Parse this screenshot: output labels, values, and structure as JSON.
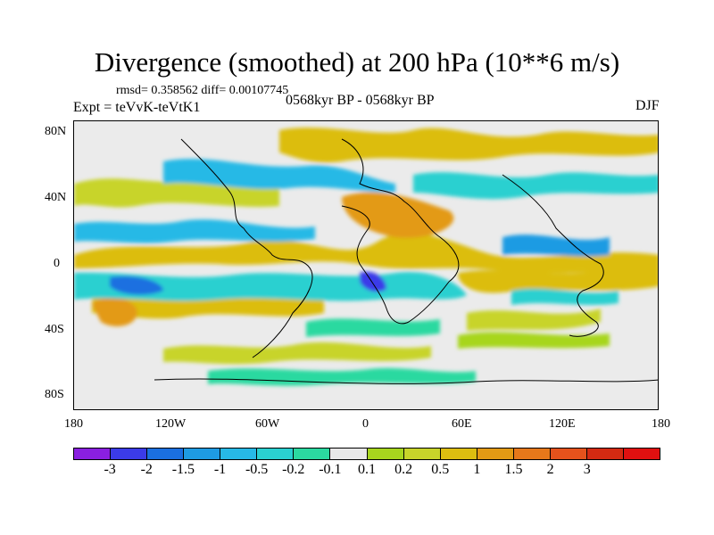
{
  "title": "Divergence (smoothed) at 200 hPa (10**6 m/s)",
  "stats_text": "rmsd= 0.358562 diff= 0.00107745",
  "expt_text": "Expt = teVvK-teVtK1",
  "period_text": "0568kyr BP - 0568kyr BP",
  "season_text": "DJF",
  "y_axis_labels": [
    "80N",
    "40N",
    "0",
    "40S",
    "80S"
  ],
  "x_axis_labels": [
    "180",
    "120W",
    "60W",
    "0",
    "60E",
    "120E",
    "180"
  ],
  "colorbar": {
    "colors": [
      "#8a1fe0",
      "#3b3be8",
      "#1a6fe0",
      "#1e9be3",
      "#27b9e6",
      "#2ad0d0",
      "#2bd9a0",
      "#e8e8e8",
      "#a7d61e",
      "#c8d42a",
      "#dcbd10",
      "#e39a14",
      "#e6781a",
      "#e5521c",
      "#d42a12",
      "#e01010"
    ],
    "labels": [
      "-3",
      "-2",
      "-1.5",
      "-1",
      "-0.5",
      "-0.2",
      "-0.1",
      "0.1",
      "0.2",
      "0.5",
      "1",
      "1.5",
      "2",
      "3"
    ]
  }
}
